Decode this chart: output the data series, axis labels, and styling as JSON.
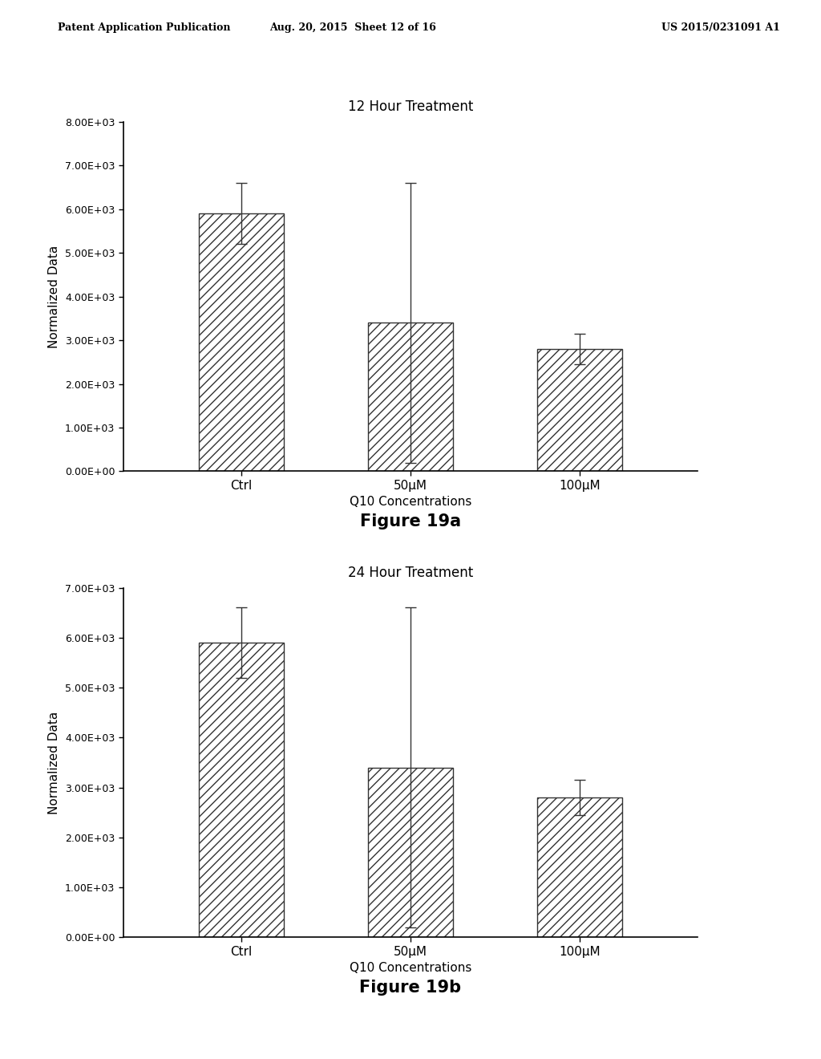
{
  "chart_a": {
    "title": "12 Hour Treatment",
    "categories": [
      "Ctrl",
      "50μM",
      "100μM"
    ],
    "values": [
      5900,
      3400,
      2800
    ],
    "errors": [
      700,
      3200,
      350
    ],
    "ylim": [
      0,
      8000
    ],
    "yticks": [
      0,
      1000,
      2000,
      3000,
      4000,
      5000,
      6000,
      7000,
      8000
    ],
    "ylabel": "Normalized Data",
    "xlabel": "Q10 Concentrations",
    "figure_label": "Figure 19a"
  },
  "chart_b": {
    "title": "24 Hour Treatment",
    "categories": [
      "Ctrl",
      "50μM",
      "100μM"
    ],
    "values": [
      5900,
      3400,
      2800
    ],
    "errors": [
      700,
      3200,
      350
    ],
    "ylim": [
      0,
      7000
    ],
    "yticks": [
      0,
      1000,
      2000,
      3000,
      4000,
      5000,
      6000,
      7000
    ],
    "ylabel": "Normalized Data",
    "xlabel": "Q10 Concentrations",
    "figure_label": "Figure 19b"
  },
  "header_left": "Patent Application Publication",
  "header_center": "Aug. 20, 2015  Sheet 12 of 16",
  "header_right": "US 2015/0231091 A1",
  "bar_color": "white",
  "bar_edgecolor": "#333333",
  "hatch": "///",
  "bar_width": 0.5,
  "background_color": "white"
}
